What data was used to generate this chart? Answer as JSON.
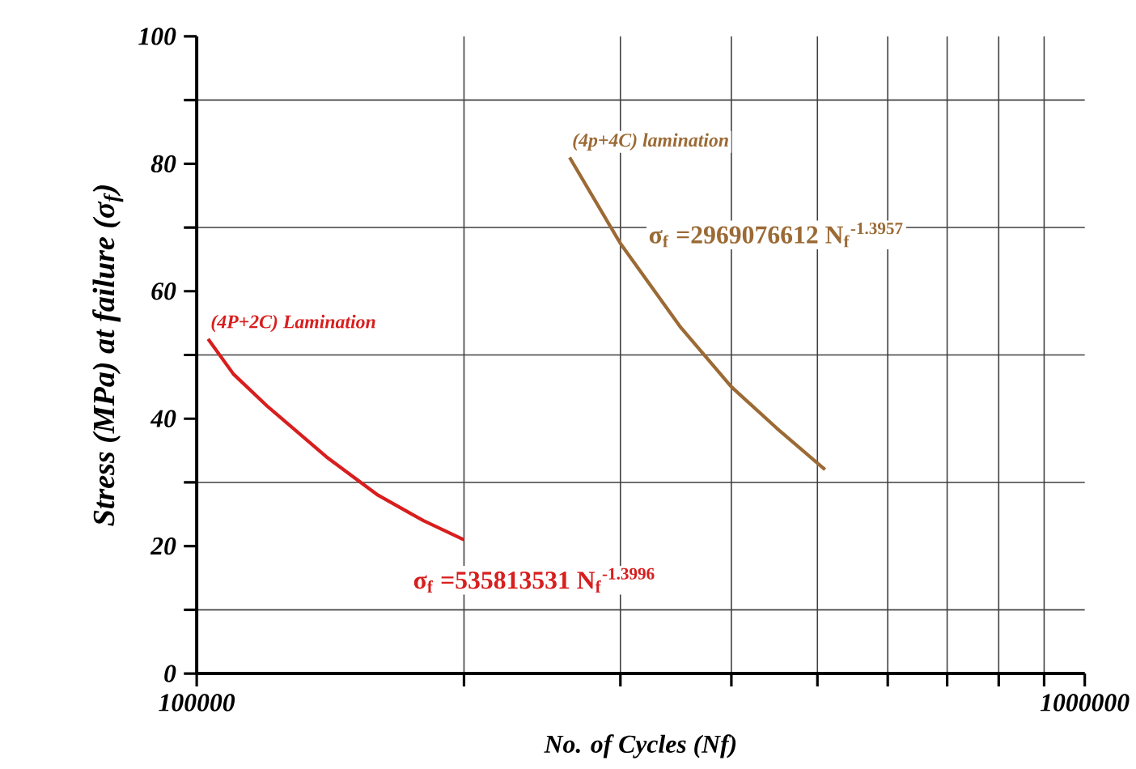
{
  "chart_data": {
    "type": "line",
    "xlabel": "No. of Cycles (Nf)",
    "ylabel": "Stress (MPa) at failure (σ$_{f}$)",
    "log": "x",
    "xlim": [
      100000,
      1000000
    ],
    "xticks": [
      100000,
      {
        "value": 200000,
        "label": null
      },
      {
        "value": 300000,
        "label": null
      },
      {
        "value": 400000,
        "label": null
      },
      {
        "value": 500000,
        "label": null
      },
      {
        "value": 600000,
        "label": null
      },
      {
        "value": 700000,
        "label": null
      },
      {
        "value": 800000,
        "label": null
      },
      {
        "value": 900000,
        "label": null
      },
      1000000
    ],
    "ylim": [
      0,
      100
    ],
    "yticks": [
      0,
      {
        "value": 10,
        "label": null
      },
      20,
      {
        "value": 30,
        "label": null
      },
      40,
      {
        "value": 50,
        "label": null
      },
      60,
      {
        "value": 70,
        "label": null
      },
      80,
      {
        "value": 90,
        "label": null
      },
      100
    ],
    "grid": true,
    "series": [
      {
        "name": "(4P+2C) Lamination",
        "color": "#d81e1e",
        "x": [
          103000,
          110000,
          120000,
          140000,
          160000,
          180000,
          200000
        ],
        "values": [
          52.5,
          47,
          42,
          34,
          28,
          24,
          21
        ]
      },
      {
        "name": "(4p+4C) lamination",
        "color": "#9b6a35",
        "x": [
          263000,
          300000,
          350000,
          400000,
          450000,
          510000
        ],
        "values": [
          81,
          67.5,
          54.5,
          45,
          38.5,
          32
        ]
      }
    ],
    "annotations": [
      "σ$_{f}$ =535813531 N$_{f}$$^{-1.3996}$",
      "σ$_{f}$ =2969076612 N$_{f}$$^{-1.3957}$"
    ]
  }
}
